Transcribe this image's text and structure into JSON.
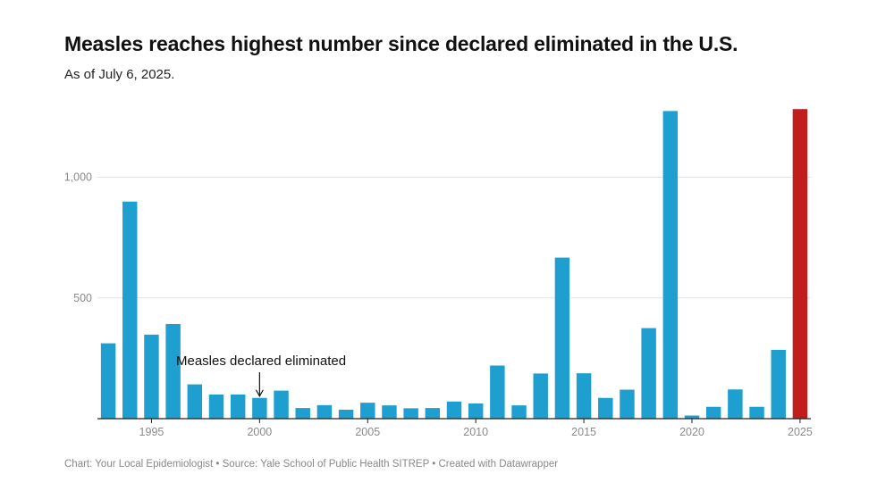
{
  "title": "Measles reaches highest number since declared eliminated in the U.S.",
  "subtitle": "As of July 6, 2025.",
  "footer": {
    "chart_credit": "Chart: Your Local Epidemiologist",
    "source": "Source: Yale School of Public Health SITREP",
    "created_with": "Created with Datawrapper",
    "separator": " • "
  },
  "colors": {
    "bar": "#1f9fd0",
    "highlight": "#c11d1d",
    "grid": "#e2e2e2",
    "axis": "#222222"
  },
  "chart_data": {
    "type": "bar",
    "title": "Measles reaches highest number since declared eliminated in the U.S.",
    "subtitle": "As of July 6, 2025.",
    "xlabel": "",
    "ylabel": "",
    "ylim": [
      0,
      1300
    ],
    "ytick_values": [
      500,
      1000
    ],
    "ytick_labels": [
      "500",
      "1,000"
    ],
    "xtick_labels": [
      "1995",
      "2000",
      "2005",
      "2010",
      "2015",
      "2020",
      "2025"
    ],
    "highlight_category": "2025",
    "categories": [
      "1993",
      "1994",
      "1995",
      "1996",
      "1997",
      "1998",
      "1999",
      "2000",
      "2001",
      "2002",
      "2003",
      "2004",
      "2005",
      "2006",
      "2007",
      "2008",
      "2009",
      "2010",
      "2011",
      "2012",
      "2013",
      "2014",
      "2015",
      "2016",
      "2017",
      "2018",
      "2019",
      "2020",
      "2021",
      "2022",
      "2023",
      "2024",
      "2025"
    ],
    "values": [
      312,
      899,
      348,
      392,
      142,
      100,
      100,
      86,
      116,
      44,
      56,
      37,
      66,
      55,
      43,
      44,
      71,
      63,
      220,
      55,
      187,
      667,
      188,
      86,
      120,
      375,
      1274,
      13,
      49,
      121,
      49,
      285,
      1282
    ],
    "annotation": {
      "text": "Measles declared eliminated",
      "year": "2000"
    }
  }
}
